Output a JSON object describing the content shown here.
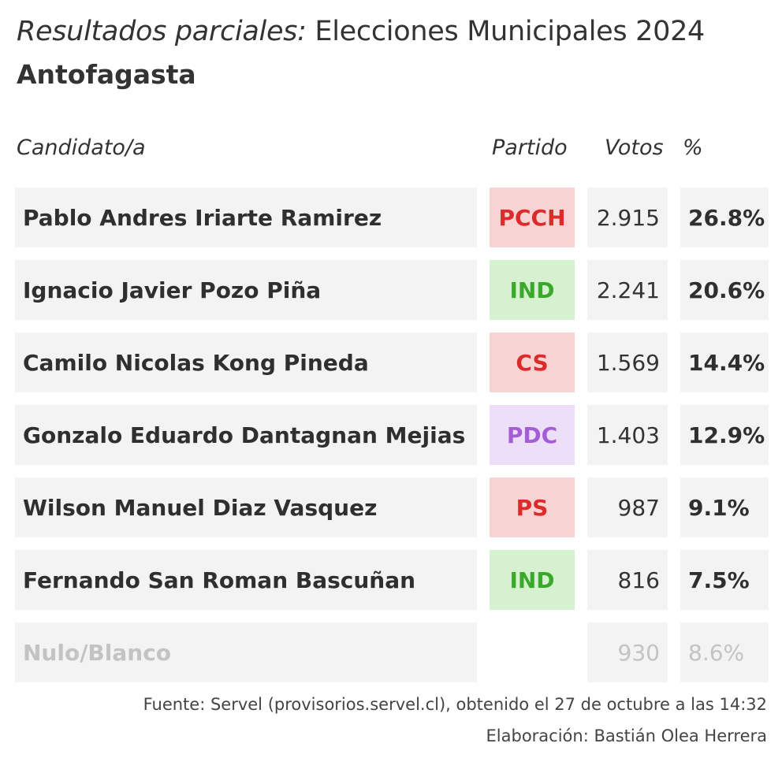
{
  "header": {
    "title_italic": "Resultados parciales:",
    "title_rest": " Elecciones Municipales 2024",
    "subtitle": "Antofagasta"
  },
  "columns": {
    "candidate": "Candidato/a",
    "party": "Partido",
    "votes": "Votos",
    "percent": "%"
  },
  "rows": [
    {
      "name": "Pablo Andres Iriarte Ramirez",
      "party": "PCCH",
      "party_bg": "#f8d3d3",
      "party_color": "#dd2a2a",
      "votes": "2.915",
      "percent": "26.8%"
    },
    {
      "name": "Ignacio Javier Pozo Piña",
      "party": "IND",
      "party_bg": "#d6f1d0",
      "party_color": "#3aa82a",
      "votes": "2.241",
      "percent": "20.6%"
    },
    {
      "name": "Camilo Nicolas Kong Pineda",
      "party": "CS",
      "party_bg": "#f8d3d3",
      "party_color": "#dd2a2a",
      "votes": "1.569",
      "percent": "14.4%"
    },
    {
      "name": "Gonzalo Eduardo Dantagnan Mejias",
      "party": "PDC",
      "party_bg": "#eddff7",
      "party_color": "#a35ed6",
      "votes": "1.403",
      "percent": "12.9%"
    },
    {
      "name": "Wilson Manuel Diaz Vasquez",
      "party": "PS",
      "party_bg": "#f8d3d3",
      "party_color": "#dd2a2a",
      "votes": "987",
      "percent": "9.1%"
    },
    {
      "name": "Fernando San Roman Bascuñan",
      "party": "IND",
      "party_bg": "#d6f1d0",
      "party_color": "#3aa82a",
      "votes": "816",
      "percent": "7.5%"
    },
    {
      "name": "Nulo/Blanco",
      "party": "",
      "party_bg": "",
      "party_color": "",
      "votes": "930",
      "percent": "8.6%",
      "muted": true
    }
  ],
  "footer": {
    "source": "Fuente: Servel (provisorios.servel.cl), obtenido el 27 de octubre a las 14:32",
    "credit": "Elaboración: Bastián Olea Herrera"
  }
}
